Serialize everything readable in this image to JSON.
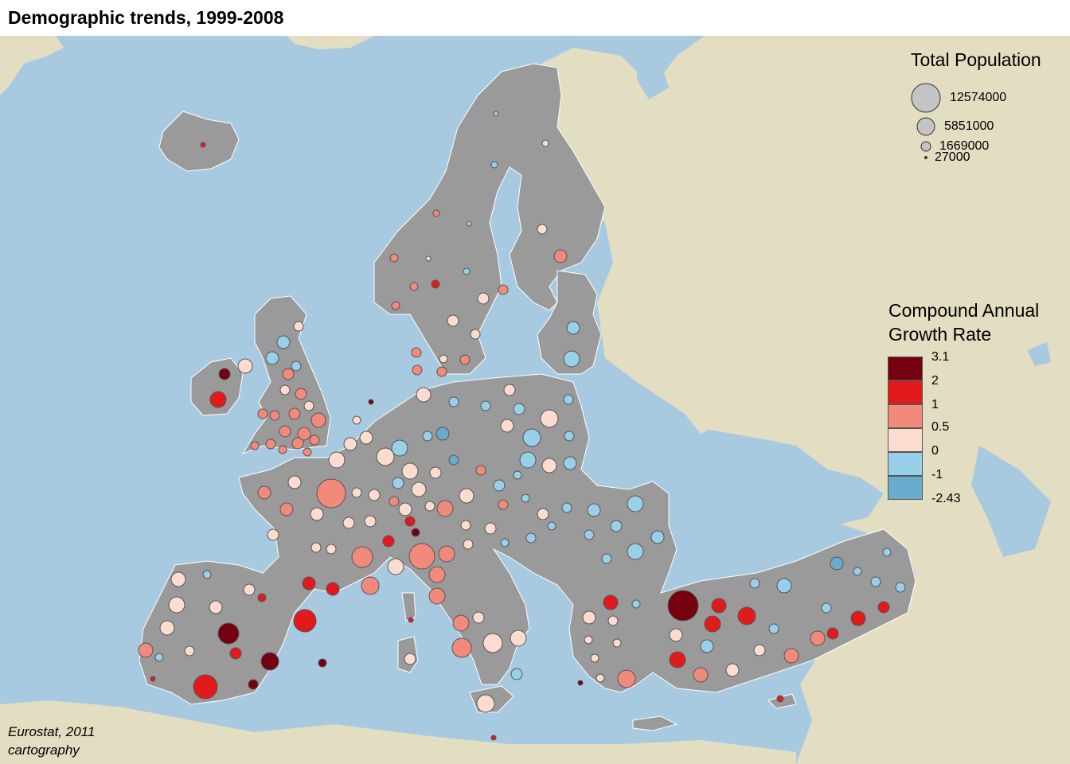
{
  "title": "Demographic trends, 1999-2008",
  "colors": {
    "sea": "#a8cae0",
    "land_outside": "#e3ddc1",
    "regions": "#9a9a9a",
    "borders": "#ffffff"
  },
  "legend_size": {
    "title": "Total Population",
    "values": [
      "12574000",
      "5851000",
      "1669000",
      "27000"
    ]
  },
  "legend_color": {
    "title_line1": "Compound Annual",
    "title_line2": "Growth Rate",
    "breaks": [
      "3.1",
      "2",
      "1",
      "0.5",
      "0",
      "-1",
      "-2.43"
    ],
    "classes": [
      "#750010",
      "#e31a1c",
      "#f28a7c",
      "#fbdccf",
      "#98d0ea",
      "#6aacce"
    ]
  },
  "credit": {
    "line1": "Eurostat, 2011",
    "line2": "cartography"
  }
}
